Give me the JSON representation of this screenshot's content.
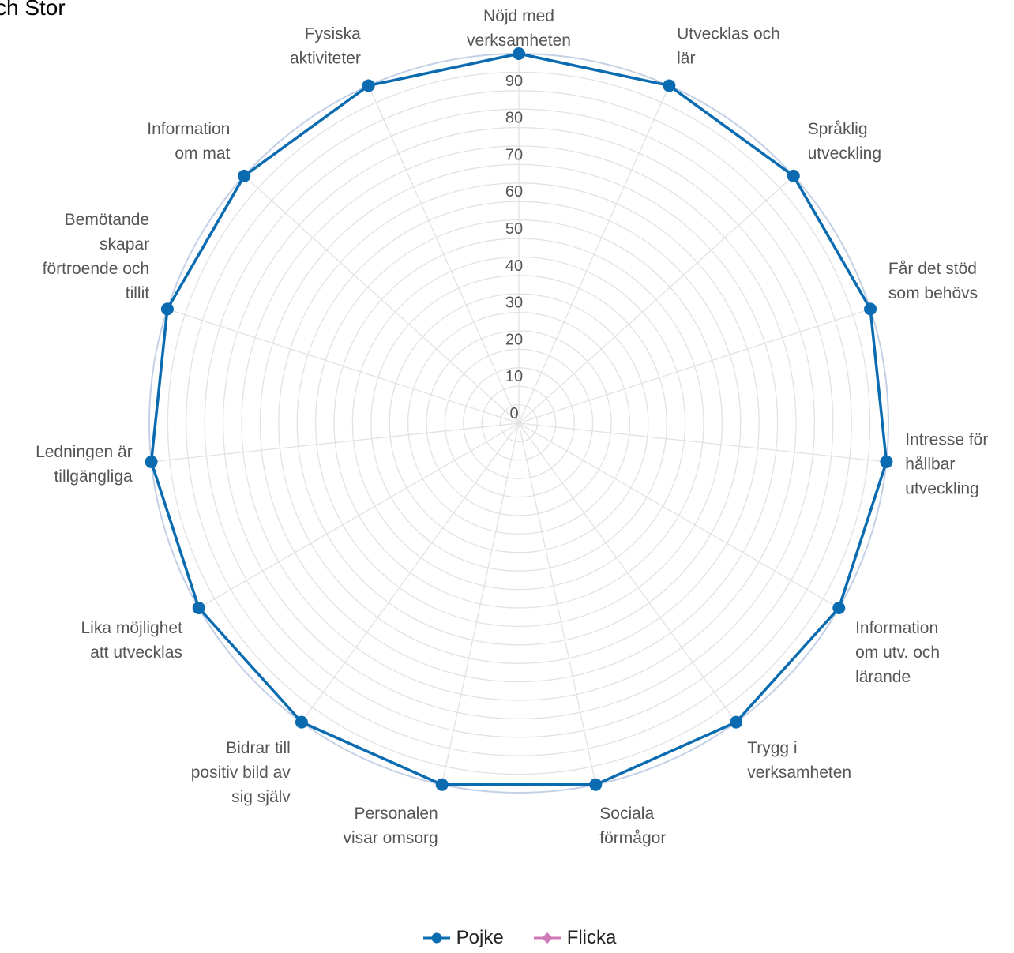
{
  "page": {
    "title": "ch Stor"
  },
  "chart_data": {
    "type": "radar",
    "axes": [
      "Nöjd med verksamheten",
      "Utvecklas och lär",
      "Språklig utveckling",
      "Får det stöd som behövs",
      "Intresse för hållbar utveckling",
      "Information om utv. och lärande",
      "Trygg i verksamheten",
      "Sociala förmågor",
      "Personalen visar omsorg",
      "Bidrar till positiv bild av sig själv",
      "Lika möjlighet att utvecklas",
      "Ledningen är tillgängliga",
      "Bemötande skapar förtroende och tillit",
      "Information om mat",
      "Fysiska aktiviteter"
    ],
    "axis_label_lines": [
      [
        "Nöjd med",
        "verksamheten"
      ],
      [
        "Utvecklas och",
        "lär"
      ],
      [
        "Språklig",
        "utveckling"
      ],
      [
        "Får det stöd",
        "som behövs"
      ],
      [
        "Intresse för",
        "hållbar",
        "utveckling"
      ],
      [
        "Information",
        "om utv. och",
        "lärande"
      ],
      [
        "Trygg i",
        "verksamheten"
      ],
      [
        "Sociala",
        "förmågor"
      ],
      [
        "Personalen",
        "visar omsorg"
      ],
      [
        "Bidrar till",
        "positiv bild av",
        "sig själv"
      ],
      [
        "Lika möjlighet",
        "att utvecklas"
      ],
      [
        "Ledningen är",
        "tillgängliga"
      ],
      [
        "Bemötande",
        "skapar",
        "förtroende och",
        "tillit"
      ],
      [
        "Information",
        "om mat"
      ],
      [
        "Fysiska",
        "aktiviteter"
      ]
    ],
    "ticks": [
      0,
      10,
      20,
      30,
      40,
      50,
      60,
      70,
      80,
      90
    ],
    "range": [
      0,
      100
    ],
    "series": [
      {
        "name": "Pojke",
        "color": "#0a6bb0",
        "marker": "circle",
        "values": [
          100,
          100,
          100,
          100,
          100,
          100,
          100,
          100,
          100,
          100,
          100,
          100,
          100,
          100,
          100
        ]
      },
      {
        "name": "Flicka",
        "color": "#d07ab5",
        "marker": "diamond",
        "values": []
      }
    ],
    "grid": true,
    "legend": "bottom-center"
  }
}
